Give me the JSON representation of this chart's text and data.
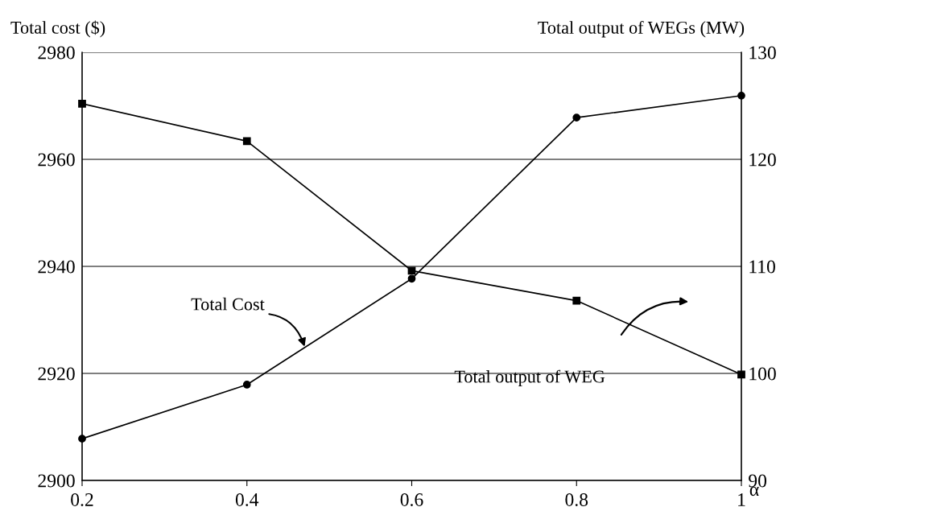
{
  "chart_data": {
    "type": "line",
    "xlabel": "α",
    "ylabel": "Total cost ($)",
    "y2label": "Total output of WEGs (MW)",
    "x": [
      0.2,
      0.4,
      0.6,
      0.8,
      1.0
    ],
    "series": [
      {
        "color": "#000000",
        "marker": "circle",
        "values": [
          2907.8,
          2917.9,
          2937.7,
          2967.8,
          2971.9
        ]
      },
      {
        "color": "#000000",
        "marker": "square",
        "axis": "y2",
        "values": [
          125.2,
          121.7,
          109.6,
          106.8,
          99.9
        ]
      }
    ],
    "xlim": [
      0.2,
      1.0
    ],
    "xticks": [
      0.2,
      0.4,
      0.6,
      0.8,
      1
    ],
    "ylim": [
      2900,
      2980
    ],
    "yticks": [
      2900,
      2920,
      2940,
      2960,
      2980
    ],
    "y2lim": [
      90,
      130
    ],
    "y2ticks": [
      90,
      100,
      110,
      120,
      130
    ],
    "grid": "y",
    "legend": false,
    "line_style": "solid",
    "annotations": [
      {
        "text": "Total Cost",
        "x": 0.47,
        "y": 2925
      },
      "Total output of WEG"
    ]
  }
}
